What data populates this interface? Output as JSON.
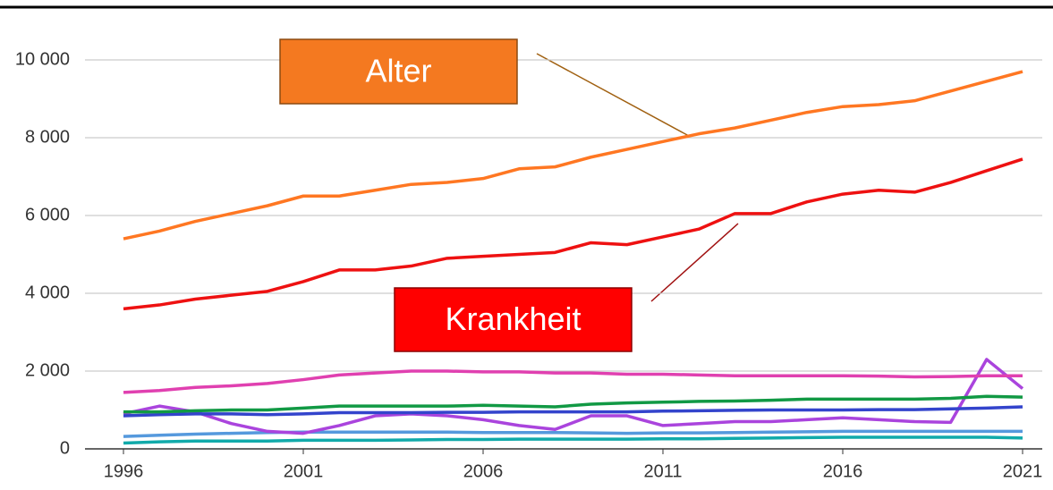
{
  "chart_data": {
    "type": "line",
    "x": [
      1996,
      1997,
      1998,
      1999,
      2000,
      2001,
      2002,
      2003,
      2004,
      2005,
      2006,
      2007,
      2008,
      2009,
      2010,
      2011,
      2012,
      2013,
      2014,
      2015,
      2016,
      2017,
      2018,
      2019,
      2020,
      2021
    ],
    "xlim": [
      1996,
      2021
    ],
    "xticks": [
      1996,
      2001,
      2006,
      2011,
      2016,
      2021
    ],
    "ylim": [
      0,
      10000
    ],
    "yticks": [
      0,
      {
        "value": 2000,
        "label": "2 000"
      },
      {
        "value": 4000,
        "label": "4 000"
      },
      {
        "value": 6000,
        "label": "6 000"
      },
      {
        "value": 8000,
        "label": "8 000"
      },
      {
        "value": 10000,
        "label": "10 000"
      }
    ],
    "grid": true,
    "annotations": [
      {
        "text": "Alter",
        "color": "#f47920"
      },
      {
        "text": "Krankheit",
        "color": "#ff0000"
      }
    ],
    "series": [
      {
        "color": "#ff7722",
        "values": [
          5400,
          5600,
          5850,
          6050,
          6250,
          6500,
          6500,
          6650,
          6800,
          6850,
          6950,
          7200,
          7250,
          7500,
          7700,
          7900,
          8100,
          8250,
          8450,
          8650,
          8800,
          8850,
          8950,
          9200,
          9450,
          9700
        ]
      },
      {
        "color": "#ee1111",
        "values": [
          3600,
          3700,
          3850,
          3950,
          4050,
          4300,
          4600,
          4600,
          4700,
          4900,
          4950,
          5000,
          5050,
          5300,
          5250,
          5450,
          5650,
          6050,
          6050,
          6350,
          6550,
          6650,
          6600,
          6850,
          7150,
          7450
        ]
      },
      {
        "color": "#e040b0",
        "values": [
          1450,
          1500,
          1580,
          1620,
          1680,
          1780,
          1900,
          1950,
          2000,
          2000,
          1980,
          1980,
          1950,
          1950,
          1920,
          1920,
          1900,
          1880,
          1880,
          1880,
          1880,
          1870,
          1850,
          1860,
          1880,
          1880
        ]
      },
      {
        "color": "#119944",
        "values": [
          950,
          950,
          980,
          1000,
          1000,
          1050,
          1100,
          1100,
          1100,
          1100,
          1120,
          1100,
          1080,
          1150,
          1180,
          1200,
          1220,
          1230,
          1250,
          1280,
          1280,
          1280,
          1280,
          1300,
          1350,
          1330
        ]
      },
      {
        "color": "#3344cc",
        "values": [
          850,
          880,
          900,
          900,
          880,
          900,
          930,
          930,
          930,
          940,
          940,
          950,
          950,
          950,
          950,
          970,
          980,
          990,
          1000,
          1000,
          1000,
          1010,
          1010,
          1030,
          1050,
          1080
        ]
      },
      {
        "color": "#aa44dd",
        "values": [
          900,
          1100,
          950,
          650,
          450,
          400,
          600,
          850,
          900,
          850,
          750,
          600,
          500,
          850,
          850,
          600,
          650,
          700,
          700,
          750,
          800,
          750,
          700,
          680,
          2300,
          1550
        ]
      },
      {
        "color": "#5599dd",
        "values": [
          320,
          350,
          380,
          400,
          420,
          430,
          430,
          430,
          430,
          430,
          420,
          420,
          420,
          410,
          400,
          410,
          410,
          420,
          430,
          440,
          450,
          450,
          450,
          450,
          450,
          450
        ]
      },
      {
        "color": "#11aaaa",
        "values": [
          150,
          180,
          200,
          200,
          200,
          220,
          220,
          220,
          230,
          240,
          240,
          250,
          250,
          250,
          250,
          260,
          260,
          270,
          280,
          290,
          300,
          300,
          300,
          300,
          300,
          280
        ]
      }
    ]
  }
}
